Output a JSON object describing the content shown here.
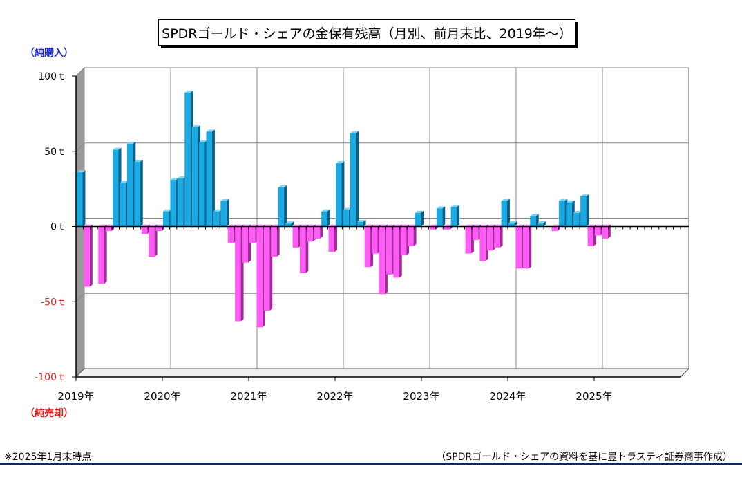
{
  "title": "SPDRゴールド・シェアの金保有残高（月別、前月末比、2019年～）",
  "label_buy": "（純購入）",
  "label_sell": "（純売却）",
  "footnote_left": "※2025年1月末時点",
  "footnote_right": "（SPDRゴールド・シェアの資料を基に豊トラスティ証券商事作成）",
  "colors": {
    "positive": "#19a9e3",
    "negative": "#ff5cf5",
    "positive_tick": "#000000",
    "negative_tick": "#e0201b"
  },
  "chart_data": {
    "type": "bar",
    "ylim": [
      -100,
      100
    ],
    "y_ticks": [
      100,
      50,
      0,
      -50,
      -100
    ],
    "y_tick_labels": [
      "100ｔ",
      "50ｔ",
      "0ｔ",
      "-50ｔ",
      "-100ｔ"
    ],
    "x_labels": [
      "2019年",
      "2020年",
      "2021年",
      "2022年",
      "2023年",
      "2024年",
      "2025年"
    ],
    "grid": true,
    "values": [
      36,
      -40,
      0,
      -38,
      -3,
      51,
      29,
      55,
      43,
      -5,
      -20,
      -3,
      10,
      31,
      32,
      89,
      66,
      56,
      63,
      10,
      17,
      -11,
      -63,
      -24,
      -11,
      -67,
      -56,
      -20,
      26,
      2,
      -14,
      -31,
      -10,
      -8,
      10,
      -17,
      42,
      11,
      62,
      3,
      -27,
      -18,
      -45,
      -32,
      -34,
      -19,
      -13,
      9,
      0,
      -2,
      12,
      -2,
      13,
      0,
      -18,
      -9,
      -23,
      -16,
      -14,
      17,
      2,
      -28,
      -28,
      7,
      2,
      0,
      -3,
      17,
      16,
      9,
      20,
      -13,
      -6,
      -8
    ]
  }
}
